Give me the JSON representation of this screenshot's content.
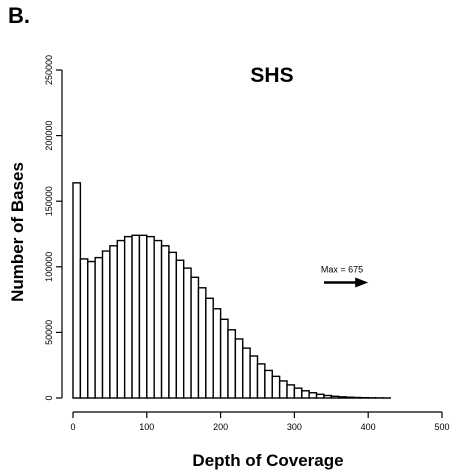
{
  "panel_label": "B.",
  "chart_data": {
    "type": "bar",
    "title": "SHS",
    "xlabel": "Depth of Coverage",
    "ylabel": "Number of Bases",
    "xlim": [
      0,
      500
    ],
    "ylim": [
      0,
      250000
    ],
    "xticks": [
      "0",
      "100",
      "200",
      "300",
      "400",
      "500"
    ],
    "xtick_values": [
      0,
      100,
      200,
      300,
      400,
      500
    ],
    "yticks": [
      "0",
      "50000",
      "100000",
      "150000",
      "200000",
      "250000"
    ],
    "ytick_values": [
      0,
      50000,
      100000,
      150000,
      200000,
      250000
    ],
    "bin_width": 10,
    "bins_start": [
      0,
      10,
      20,
      30,
      40,
      50,
      60,
      70,
      80,
      90,
      100,
      110,
      120,
      130,
      140,
      150,
      160,
      170,
      180,
      190,
      200,
      210,
      220,
      230,
      240,
      250,
      260,
      270,
      280,
      290,
      300,
      310,
      320,
      330,
      340,
      350,
      360,
      370,
      380,
      390,
      400,
      410,
      420
    ],
    "values": [
      164000,
      106000,
      104000,
      107000,
      112000,
      116000,
      120000,
      123000,
      124000,
      124000,
      123000,
      120000,
      116000,
      111000,
      105000,
      99000,
      92000,
      84000,
      76000,
      68000,
      60000,
      52000,
      45000,
      38000,
      32000,
      26000,
      21000,
      16500,
      13000,
      10000,
      7500,
      5500,
      4000,
      2800,
      1900,
      1300,
      900,
      600,
      400,
      250,
      150,
      80,
      40
    ],
    "annotation": {
      "text": "Max = 675",
      "arrow_from_x": 340,
      "arrow_to_x": 400,
      "y": 88000
    }
  }
}
